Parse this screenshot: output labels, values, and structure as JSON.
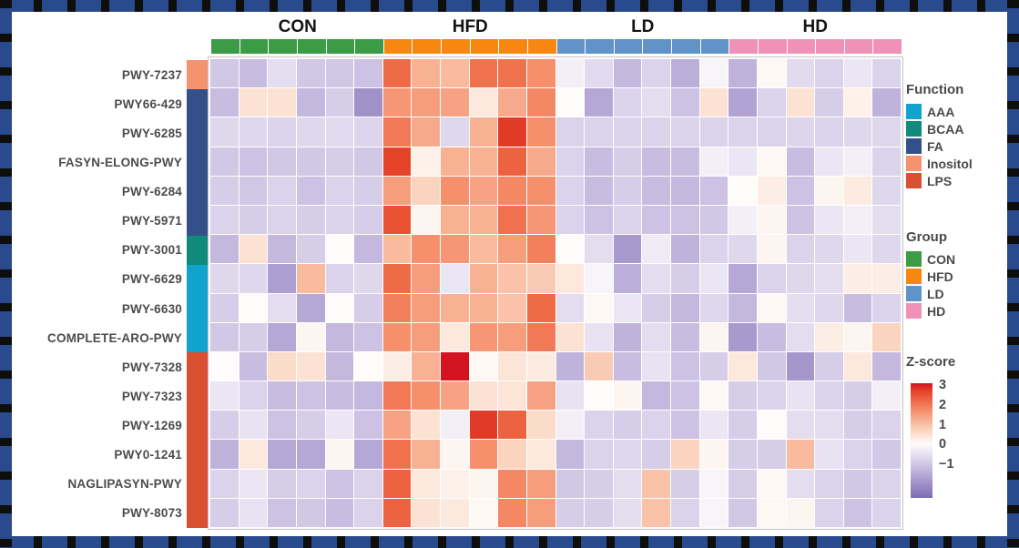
{
  "legend_function": {
    "title": "Function",
    "items": [
      {
        "label": "AAA",
        "color": "#12A3CC"
      },
      {
        "label": "BCAA",
        "color": "#0F8A7D"
      },
      {
        "label": "FA",
        "color": "#33508A"
      },
      {
        "label": "Inositol",
        "color": "#F6936F"
      },
      {
        "label": "LPS",
        "color": "#D8502F"
      }
    ]
  },
  "legend_group": {
    "title": "Group",
    "items": [
      {
        "label": "CON",
        "color": "#3C9B45"
      },
      {
        "label": "HFD",
        "color": "#F8870F"
      },
      {
        "label": "LD",
        "color": "#6093C8"
      },
      {
        "label": "HD",
        "color": "#F092B8"
      }
    ]
  },
  "colorbar": {
    "title": "Z-score",
    "ticks": [
      3,
      2,
      1,
      0,
      -1
    ],
    "high_color": "#D31420",
    "mid_color": "#FFFFFF",
    "low_color": "#7B6BB0"
  },
  "chart_data": {
    "type": "heatmap",
    "title": "",
    "legend_position": "right",
    "grid": "faint-white-lines",
    "zlim": [
      -2.7,
      3.1
    ],
    "column_groups": [
      {
        "label": "CON",
        "color": "#3C9B45",
        "n_cols": 6
      },
      {
        "label": "HFD",
        "color": "#F8870F",
        "n_cols": 6
      },
      {
        "label": "LD",
        "color": "#6093C8",
        "n_cols": 6
      },
      {
        "label": "HD",
        "color": "#F092B8",
        "n_cols": 6
      }
    ],
    "row_annotation_title": "Function",
    "row_annotation_colors": {
      "AAA": "#12A3CC",
      "BCAA": "#0F8A7D",
      "FA": "#33508A",
      "Inositol": "#F6936F",
      "LPS": "#D8502F"
    },
    "rows": [
      {
        "label": "PWY-7237",
        "function": "Inositol"
      },
      {
        "label": "PWY66-429",
        "function": "FA"
      },
      {
        "label": "PWY-6285",
        "function": "FA"
      },
      {
        "label": "FASYN-ELONG-PWY",
        "function": "FA"
      },
      {
        "label": "PWY-6284",
        "function": "FA"
      },
      {
        "label": "PWY-5971",
        "function": "FA"
      },
      {
        "label": "PWY-3001",
        "function": "BCAA"
      },
      {
        "label": "PWY-6629",
        "function": "AAA"
      },
      {
        "label": "PWY-6630",
        "function": "AAA"
      },
      {
        "label": "COMPLETE-ARO-PWY",
        "function": "AAA"
      },
      {
        "label": "PWY-7328",
        "function": "LPS"
      },
      {
        "label": "PWY-7323",
        "function": "LPS"
      },
      {
        "label": "PWY-1269",
        "function": "LPS"
      },
      {
        "label": "PWY0-1241",
        "function": "LPS"
      },
      {
        "label": "NAGLIPASYN-PWY",
        "function": "LPS"
      },
      {
        "label": "PWY-8073",
        "function": "LPS"
      }
    ],
    "z_score_matrix": [
      [
        -0.7,
        -0.9,
        -0.3,
        -0.7,
        -0.7,
        -0.8,
        2.0,
        1.0,
        0.9,
        1.9,
        1.9,
        1.5,
        -0.1,
        -0.35,
        -1.0,
        -0.5,
        -1.2,
        -0.05,
        -1.1,
        0.05,
        -0.35,
        -0.5,
        -0.2,
        -0.5
      ],
      [
        -0.9,
        0.4,
        0.4,
        -1.0,
        -0.6,
        -1.8,
        1.4,
        1.3,
        1.2,
        0.3,
        1.1,
        1.6,
        0.0,
        -1.3,
        -0.5,
        -0.3,
        -0.8,
        0.4,
        -1.4,
        -0.5,
        0.4,
        -0.6,
        0.15,
        -1.1
      ],
      [
        -0.4,
        -0.4,
        -0.5,
        -0.4,
        -0.35,
        -0.45,
        1.8,
        1.1,
        -0.4,
        1.0,
        2.6,
        1.5,
        -0.5,
        -0.5,
        -0.5,
        -0.5,
        -0.5,
        -0.5,
        -0.5,
        -0.5,
        -0.45,
        -0.5,
        -0.4,
        -0.4
      ],
      [
        -0.7,
        -0.8,
        -0.7,
        -0.7,
        -0.6,
        -0.7,
        2.5,
        0.15,
        1.0,
        1.0,
        2.1,
        1.1,
        -0.5,
        -0.9,
        -0.6,
        -0.9,
        -0.9,
        -0.1,
        -0.2,
        0.05,
        -0.9,
        -0.2,
        -0.1,
        -0.5
      ],
      [
        -0.6,
        -0.7,
        -0.5,
        -0.8,
        -0.5,
        -0.6,
        1.3,
        0.6,
        1.5,
        1.2,
        1.6,
        1.5,
        -0.5,
        -0.9,
        -0.6,
        -0.9,
        -1.0,
        -0.8,
        0.0,
        0.2,
        -0.8,
        0.1,
        0.25,
        -0.4
      ],
      [
        -0.5,
        -0.6,
        -0.5,
        -0.6,
        -0.5,
        -0.6,
        2.3,
        0.1,
        1.0,
        1.0,
        1.9,
        1.4,
        -0.5,
        -0.8,
        -0.5,
        -0.8,
        -0.8,
        -0.7,
        -0.1,
        0.1,
        -0.8,
        -0.2,
        -0.1,
        -0.3
      ],
      [
        -1.0,
        0.4,
        -1.0,
        -0.6,
        0.0,
        -1.0,
        0.9,
        1.5,
        1.4,
        0.9,
        1.3,
        1.7,
        0.0,
        -0.3,
        -1.6,
        -0.15,
        -1.1,
        -0.5,
        -0.4,
        0.1,
        -0.5,
        -0.4,
        -0.2,
        -0.4
      ],
      [
        -0.4,
        -0.4,
        -1.5,
        0.9,
        -0.5,
        -0.4,
        2.0,
        1.3,
        -0.2,
        1.0,
        0.8,
        0.7,
        0.3,
        -0.05,
        -1.2,
        -0.3,
        -0.6,
        -0.2,
        -1.3,
        -0.5,
        -0.4,
        -0.3,
        0.2,
        0.2
      ],
      [
        -0.6,
        0.0,
        -0.3,
        -1.3,
        0.0,
        -0.6,
        1.7,
        1.3,
        1.0,
        1.0,
        0.8,
        2.0,
        -0.3,
        0.05,
        -0.2,
        -0.6,
        -1.0,
        -0.4,
        -1.0,
        0.05,
        -0.3,
        -0.4,
        -0.9,
        -0.5
      ],
      [
        -0.7,
        -0.6,
        -1.3,
        0.1,
        -1.0,
        -0.8,
        1.5,
        1.3,
        0.3,
        1.4,
        1.3,
        1.8,
        0.4,
        -0.25,
        -1.1,
        -0.3,
        -0.9,
        0.1,
        -1.6,
        -0.9,
        -0.3,
        0.2,
        0.1,
        0.6
      ],
      [
        0.0,
        -0.9,
        0.5,
        0.4,
        -1.0,
        0.0,
        0.2,
        1.0,
        3.0,
        0.05,
        0.35,
        0.25,
        -1.1,
        0.7,
        -0.9,
        -0.25,
        -0.8,
        -0.6,
        0.3,
        -0.7,
        -1.7,
        -0.6,
        0.3,
        -1.0
      ],
      [
        -0.2,
        -0.5,
        -0.9,
        -0.8,
        -0.9,
        -1.0,
        1.8,
        1.5,
        1.2,
        0.4,
        0.35,
        1.2,
        -0.25,
        0.0,
        0.1,
        -1.0,
        -0.8,
        0.05,
        -0.6,
        -0.5,
        -0.25,
        -0.5,
        -0.6,
        -0.1
      ],
      [
        -0.6,
        -0.25,
        -0.8,
        -0.6,
        -0.2,
        -0.8,
        1.2,
        0.4,
        -0.1,
        2.6,
        2.1,
        0.5,
        -0.1,
        -0.5,
        -0.6,
        -0.5,
        -0.8,
        -0.2,
        -0.6,
        0.0,
        -0.3,
        -0.3,
        -0.6,
        -0.5
      ],
      [
        -1.1,
        0.3,
        -1.3,
        -1.3,
        0.1,
        -1.3,
        1.9,
        1.0,
        0.1,
        1.5,
        0.6,
        0.3,
        -1.0,
        -0.5,
        -0.4,
        -0.6,
        0.6,
        0.1,
        -0.6,
        -0.6,
        0.9,
        -0.25,
        -0.5,
        -0.7
      ],
      [
        -0.5,
        -0.2,
        -0.6,
        -0.5,
        -0.8,
        -0.5,
        2.1,
        0.3,
        0.15,
        0.1,
        1.6,
        1.3,
        -0.7,
        -0.6,
        -0.3,
        0.8,
        -0.6,
        -0.05,
        -0.6,
        0.05,
        -0.3,
        -0.5,
        -0.7,
        -0.5
      ],
      [
        -0.6,
        -0.25,
        -0.8,
        -0.7,
        -0.9,
        -0.5,
        2.1,
        0.4,
        0.3,
        0.05,
        1.6,
        1.3,
        -0.6,
        -0.6,
        -0.3,
        0.8,
        -0.5,
        -0.05,
        -0.7,
        0.05,
        0.1,
        -0.5,
        -0.8,
        -0.5
      ]
    ]
  }
}
